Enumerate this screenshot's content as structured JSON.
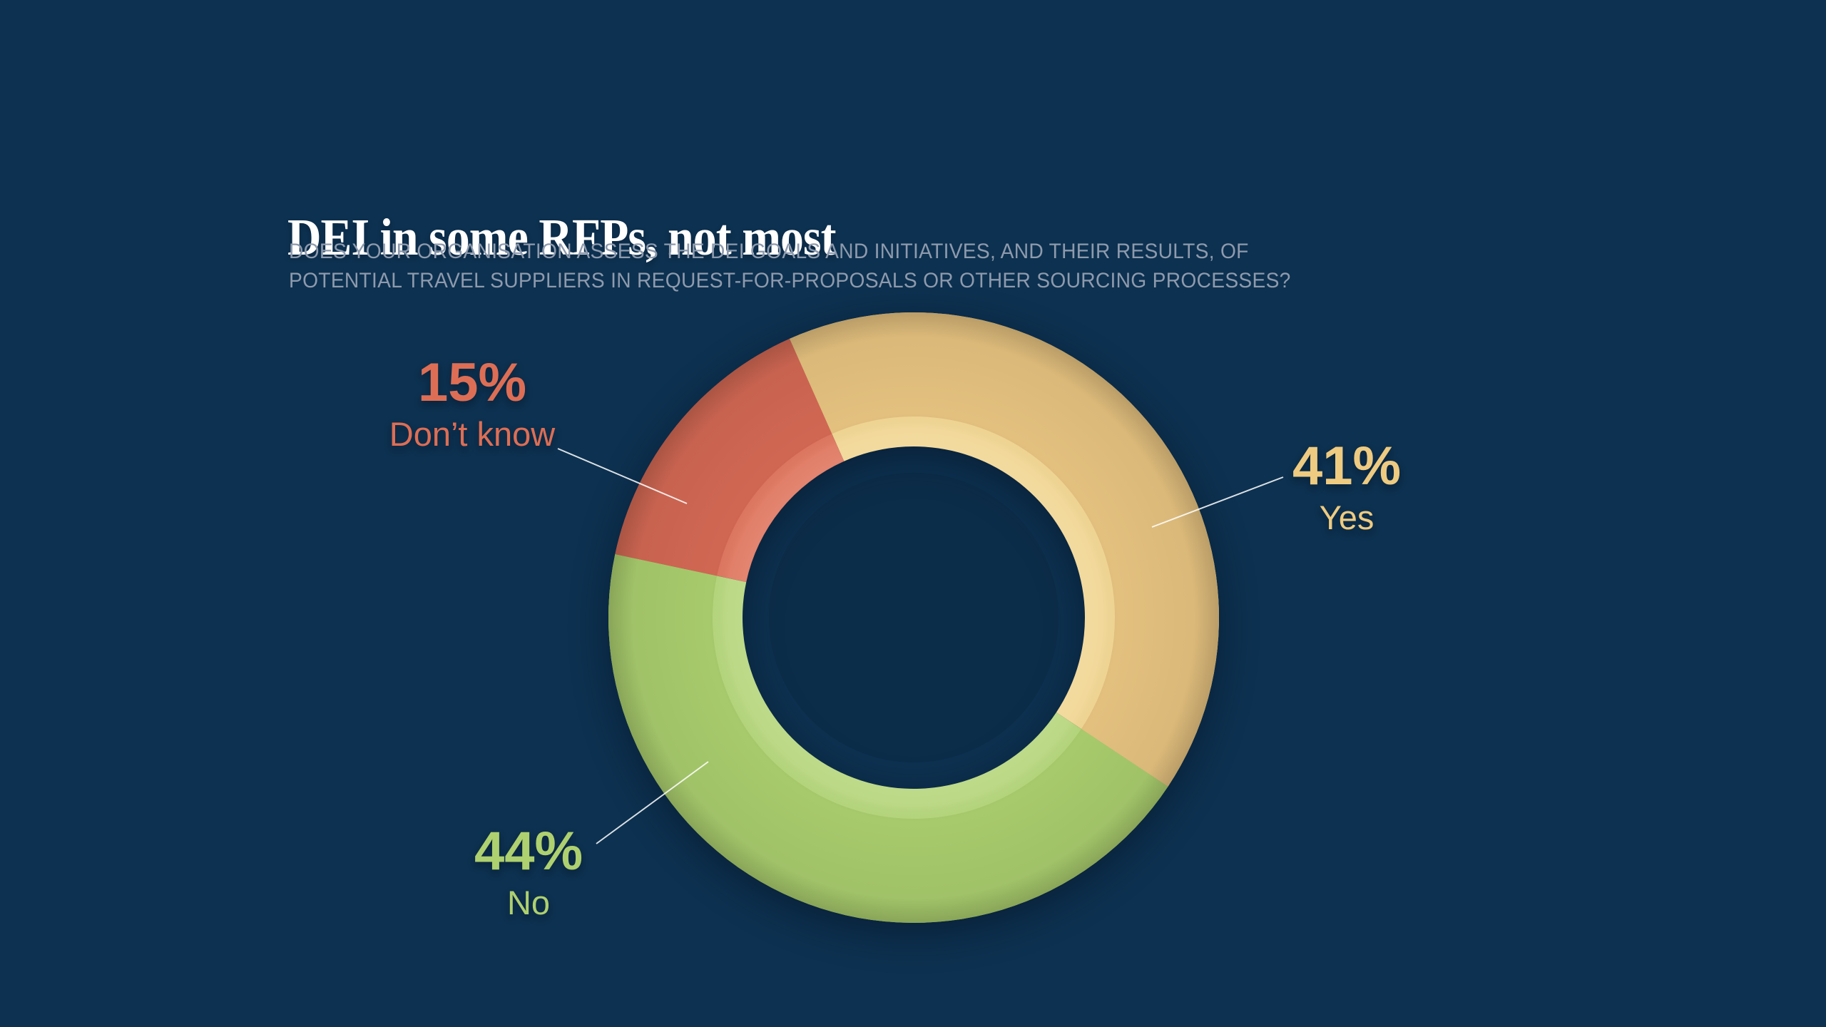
{
  "slide": {
    "title": "DEI in some RFPs, not most",
    "subtitle_line1": "DOES YOUR ORGANISATION ASSESS THE DEI GOALS AND INITIATIVES, AND THEIR RESULTS, OF",
    "subtitle_line2": "POTENTIAL TRAVEL SUPPLIERS IN REQUEST-FOR-PROPOSALS OR OTHER SOURCING PROCESSES?",
    "background_color": "#0d3150",
    "title_color": "#ffffff",
    "subtitle_color": "#8e9aad"
  },
  "chart_data": {
    "type": "pie",
    "variant": "donut",
    "title": "DEI in some RFPs, not most",
    "categories": [
      "Yes",
      "No",
      "Don’t know"
    ],
    "values": [
      41,
      44,
      15
    ],
    "units": "%",
    "start_angle_deg": -24,
    "direction": "clockwise",
    "legend_position": "outside-callouts",
    "leader_line_color": "#ffffff",
    "segments": [
      {
        "label": "Yes",
        "value": 41,
        "display": "41%",
        "color": "#e3c07e",
        "inner_band_color": "#f1d694",
        "callout_text_color": "#eecb81"
      },
      {
        "label": "No",
        "value": 44,
        "display": "44%",
        "color": "#a7ca6c",
        "inner_band_color": "#b6d67d",
        "callout_text_color": "#aed06f"
      },
      {
        "label": "Don’t know",
        "value": 15,
        "display": "15%",
        "color": "#d06753",
        "inner_band_color": "#df7760",
        "callout_text_color": "#dd6e55"
      }
    ]
  },
  "callouts": [
    {
      "pct": "41%",
      "label": "Yes"
    },
    {
      "pct": "44%",
      "label": "No"
    },
    {
      "pct": "15%",
      "label": "Don’t know"
    }
  ]
}
